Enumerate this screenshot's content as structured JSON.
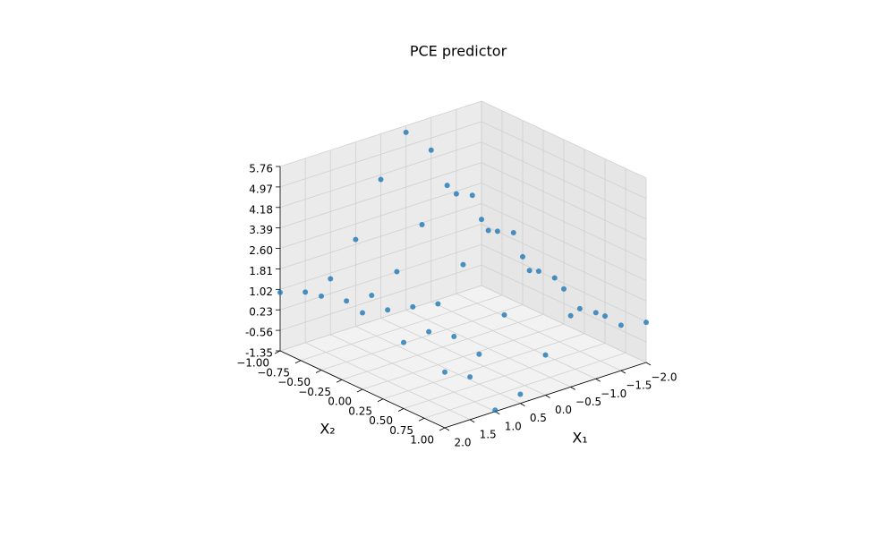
{
  "chart_data": {
    "type": "scatter3d",
    "title": "PCE predictor",
    "x_label": "X₁",
    "y_label": "X₂",
    "xlim": [
      -2,
      2
    ],
    "ylim": [
      -1,
      1
    ],
    "zlim": [
      -1.35,
      5.76
    ],
    "xticks": [
      {
        "value": -2,
        "label": "−2.0"
      },
      {
        "value": -1.5,
        "label": "−1.5"
      },
      {
        "value": -1,
        "label": "−1.0"
      },
      {
        "value": -0.5,
        "label": "−0.5"
      },
      {
        "value": 0,
        "label": "0.0"
      },
      {
        "value": 0.5,
        "label": "0.5"
      },
      {
        "value": 1,
        "label": "1.0"
      },
      {
        "value": 1.5,
        "label": "1.5"
      },
      {
        "value": 2,
        "label": "2.0"
      }
    ],
    "yticks": [
      {
        "value": -1,
        "label": "−1.00"
      },
      {
        "value": -0.75,
        "label": "−0.75"
      },
      {
        "value": -0.5,
        "label": "−0.50"
      },
      {
        "value": -0.25,
        "label": "−0.25"
      },
      {
        "value": 0,
        "label": "0.00"
      },
      {
        "value": 0.25,
        "label": "0.25"
      },
      {
        "value": 0.5,
        "label": "0.50"
      },
      {
        "value": 0.75,
        "label": "0.75"
      },
      {
        "value": 1,
        "label": "1.00"
      }
    ],
    "zticks": [
      {
        "value": -1.35,
        "label": "-1.35"
      },
      {
        "value": -0.56,
        "label": "-0.56"
      },
      {
        "value": 0.23,
        "label": "0.23"
      },
      {
        "value": 1.02,
        "label": "1.02"
      },
      {
        "value": 1.81,
        "label": "1.81"
      },
      {
        "value": 2.6,
        "label": "2.60"
      },
      {
        "value": 3.39,
        "label": "3.39"
      },
      {
        "value": 4.18,
        "label": "4.18"
      },
      {
        "value": 4.97,
        "label": "4.97"
      },
      {
        "value": 5.76,
        "label": "5.76"
      }
    ],
    "grid": true,
    "series": [
      {
        "color": "#1f77b4",
        "x": [
          -2,
          -1.5,
          -1,
          -0.5,
          0,
          0.5,
          1,
          1.5,
          2,
          -2,
          -1.5,
          -1,
          -0.5,
          0,
          0.5,
          1,
          1.5,
          2,
          -2,
          -1.5,
          -1,
          -0.5,
          0,
          0.5,
          1,
          1.5,
          2,
          -2,
          -1.5,
          -1,
          -0.5,
          0,
          0.5,
          1,
          1.5,
          2,
          -2,
          -1.5,
          -1,
          -0.5,
          0,
          0.5,
          1,
          1.5,
          2
        ],
        "y": [
          -1,
          -1,
          -1,
          -1,
          -1,
          -1,
          -1,
          -1,
          -1,
          -0.5,
          -0.5,
          -0.5,
          -0.5,
          -0.5,
          -0.5,
          -0.5,
          -0.5,
          -0.5,
          0,
          0,
          0,
          0,
          0,
          0,
          0,
          0,
          0,
          0.5,
          0.5,
          0.5,
          0.5,
          0.5,
          0.5,
          0.5,
          0.5,
          0.5,
          1,
          1,
          1,
          1,
          1,
          1,
          1,
          1,
          1
        ],
        "z": [
          1.2,
          2.5,
          4.5,
          5.5,
          4.0,
          2.0,
          0.8,
          0.6,
          0.9,
          0.5,
          1.8,
          3.5,
          4.2,
          3.0,
          1.5,
          0.9,
          1.0,
          1.5,
          0.0,
          1.0,
          2.8,
          3.2,
          2.2,
          1.0,
          1.2,
          1.4,
          1.6,
          -0.3,
          0.3,
          1.8,
          2.4,
          1.0,
          -0.2,
          0.8,
          1.3,
          1.2,
          0.2,
          0.4,
          1.2,
          1.4,
          0.2,
          -1.0,
          -1.3,
          0.3,
          0.8
        ]
      }
    ]
  }
}
